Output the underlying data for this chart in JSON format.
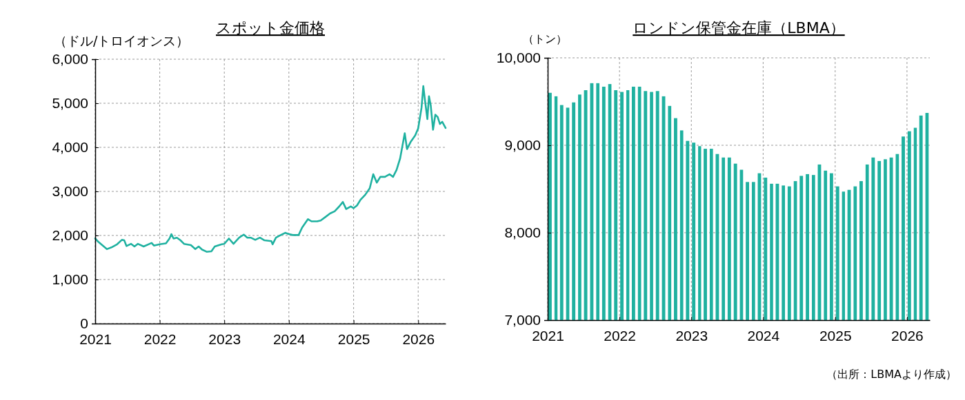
{
  "chart_data": [
    {
      "type": "line",
      "title": "スポット金価格",
      "ylabel": "（ドル/トロイオンス）",
      "x": [
        "2021-01-01",
        "2021-01-20",
        "2021-03-08",
        "2021-04-03",
        "2021-05-05",
        "2021-06-01",
        "2021-06-14",
        "2021-06-27",
        "2021-07-23",
        "2021-08-11",
        "2021-08-30",
        "2021-10-02",
        "2021-11-16",
        "2021-11-29",
        "2022-01-01",
        "2022-02-05",
        "2022-02-25",
        "2022-03-08",
        "2022-03-20",
        "2022-04-08",
        "2022-04-28",
        "2022-05-18",
        "2022-06-26",
        "2022-07-21",
        "2022-08-09",
        "2022-08-28",
        "2022-09-23",
        "2022-10-20",
        "2022-11-08",
        "2022-12-18",
        "2023-01-01",
        "2023-01-27",
        "2023-02-22",
        "2023-03-26",
        "2023-04-21",
        "2023-05-11",
        "2023-05-30",
        "2023-06-25",
        "2023-07-21",
        "2023-08-16",
        "2023-09-24",
        "2023-10-01",
        "2023-10-20",
        "2023-11-16",
        "2023-12-12",
        "2024-01-01",
        "2024-01-23",
        "2024-02-25",
        "2024-03-16",
        "2024-04-18",
        "2024-05-08",
        "2024-06-09",
        "2024-06-29",
        "2024-07-26",
        "2024-08-21",
        "2024-09-16",
        "2024-10-12",
        "2024-11-01",
        "2024-11-20",
        "2024-12-16",
        "2025-01-01",
        "2025-01-20",
        "2025-02-09",
        "2025-03-07",
        "2025-04-02",
        "2025-04-22",
        "2025-05-12",
        "2025-06-01",
        "2025-06-27",
        "2025-07-23",
        "2025-08-12",
        "2025-09-01",
        "2025-09-21",
        "2025-10-17",
        "2025-10-30",
        "2025-11-19",
        "2025-12-15",
        "2026-01-01",
        "2026-01-20",
        "2026-01-30",
        "2026-02-09",
        "2026-02-22",
        "2026-03-03",
        "2026-03-13",
        "2026-03-26",
        "2026-04-08",
        "2026-04-21",
        "2026-05-04",
        "2026-05-17",
        "2026-06-05"
      ],
      "series": [
        {
          "color": "#1fb1a0",
          "values": [
            1930,
            1850,
            1690,
            1730,
            1800,
            1900,
            1890,
            1760,
            1810,
            1750,
            1810,
            1750,
            1830,
            1770,
            1800,
            1820,
            1930,
            2030,
            1930,
            1950,
            1890,
            1810,
            1780,
            1690,
            1750,
            1680,
            1630,
            1640,
            1750,
            1800,
            1810,
            1930,
            1810,
            1950,
            2020,
            1950,
            1950,
            1900,
            1950,
            1890,
            1870,
            1800,
            1950,
            2010,
            2060,
            2030,
            2010,
            2010,
            2180,
            2370,
            2320,
            2320,
            2340,
            2420,
            2500,
            2550,
            2660,
            2760,
            2600,
            2660,
            2620,
            2680,
            2810,
            2920,
            3070,
            3390,
            3200,
            3330,
            3330,
            3390,
            3330,
            3490,
            3750,
            4320,
            3960,
            4120,
            4270,
            4430,
            4900,
            5390,
            5050,
            4640,
            5160,
            4950,
            4400,
            4740,
            4690,
            4530,
            4580,
            4440
          ]
        }
      ],
      "xlim": [
        "2021-01-01",
        "2026-06-05"
      ],
      "xticks": [
        "2021",
        "2022",
        "2023",
        "2024",
        "2025",
        "2026"
      ],
      "ylim": [
        0,
        6000
      ],
      "yticks": [
        0,
        {
          "value": 1000,
          "label": "1,000"
        },
        {
          "value": 2000,
          "label": "2,000"
        },
        {
          "value": 3000,
          "label": "3,000"
        },
        {
          "value": 4000,
          "label": "4,000"
        },
        {
          "value": 5000,
          "label": "5,000"
        },
        {
          "value": 6000,
          "label": "6,000"
        }
      ],
      "grid": true,
      "line_style": "solid",
      "marker": "none"
    },
    {
      "type": "bar",
      "title": "ロンドン保管金在庫（LBMA）",
      "ylabel": "（トン）",
      "x": [
        "2021-01",
        "2021-02",
        "2021-03",
        "2021-04",
        "2021-05",
        "2021-06",
        "2021-07",
        "2021-08",
        "2021-09",
        "2021-10",
        "2021-11",
        "2021-12",
        "2022-01",
        "2022-02",
        "2022-03",
        "2022-04",
        "2022-05",
        "2022-06",
        "2022-07",
        "2022-08",
        "2022-09",
        "2022-10",
        "2022-11",
        "2022-12",
        "2023-01",
        "2023-02",
        "2023-03",
        "2023-04",
        "2023-05",
        "2023-06",
        "2023-07",
        "2023-08",
        "2023-09",
        "2023-10",
        "2023-11",
        "2023-12",
        "2024-01",
        "2024-02",
        "2024-03",
        "2024-04",
        "2024-05",
        "2024-06",
        "2024-07",
        "2024-08",
        "2024-09",
        "2024-10",
        "2024-11",
        "2024-12",
        "2025-01",
        "2025-02",
        "2025-03",
        "2025-04",
        "2025-05",
        "2025-06",
        "2025-07",
        "2025-08",
        "2025-09",
        "2025-10",
        "2025-11",
        "2025-12",
        "2026-01",
        "2026-02",
        "2026-03",
        "2026-04"
      ],
      "series": [
        {
          "color": "#1fb1a0",
          "values": [
            9600,
            9560,
            9460,
            9430,
            9490,
            9580,
            9630,
            9710,
            9710,
            9670,
            9700,
            9630,
            9610,
            9630,
            9670,
            9670,
            9620,
            9610,
            9620,
            9560,
            9450,
            9310,
            9170,
            9050,
            9030,
            8990,
            8960,
            8960,
            8900,
            8860,
            8860,
            8790,
            8720,
            8580,
            8580,
            8680,
            8630,
            8560,
            8560,
            8540,
            8530,
            8590,
            8650,
            8670,
            8660,
            8780,
            8710,
            8680,
            8530,
            8470,
            8490,
            8530,
            8590,
            8780,
            8860,
            8820,
            8840,
            8860,
            8900,
            9100,
            9160,
            9200,
            9340,
            9370
          ]
        }
      ],
      "xlim": [
        "2021-01-01",
        "2026-04-27"
      ],
      "xticks": [
        "2021",
        "2022",
        "2023",
        "2024",
        "2025",
        "2026"
      ],
      "ylim": [
        7000,
        10000
      ],
      "yticks": [
        {
          "value": 7000,
          "label": "7,000"
        },
        {
          "value": 8000,
          "label": "8,000"
        },
        {
          "value": 9000,
          "label": "9,000"
        },
        {
          "value": 10000,
          "label": "10,000"
        }
      ],
      "grid": true,
      "annotations": [
        "（出所：LBMAより作成）"
      ]
    }
  ]
}
